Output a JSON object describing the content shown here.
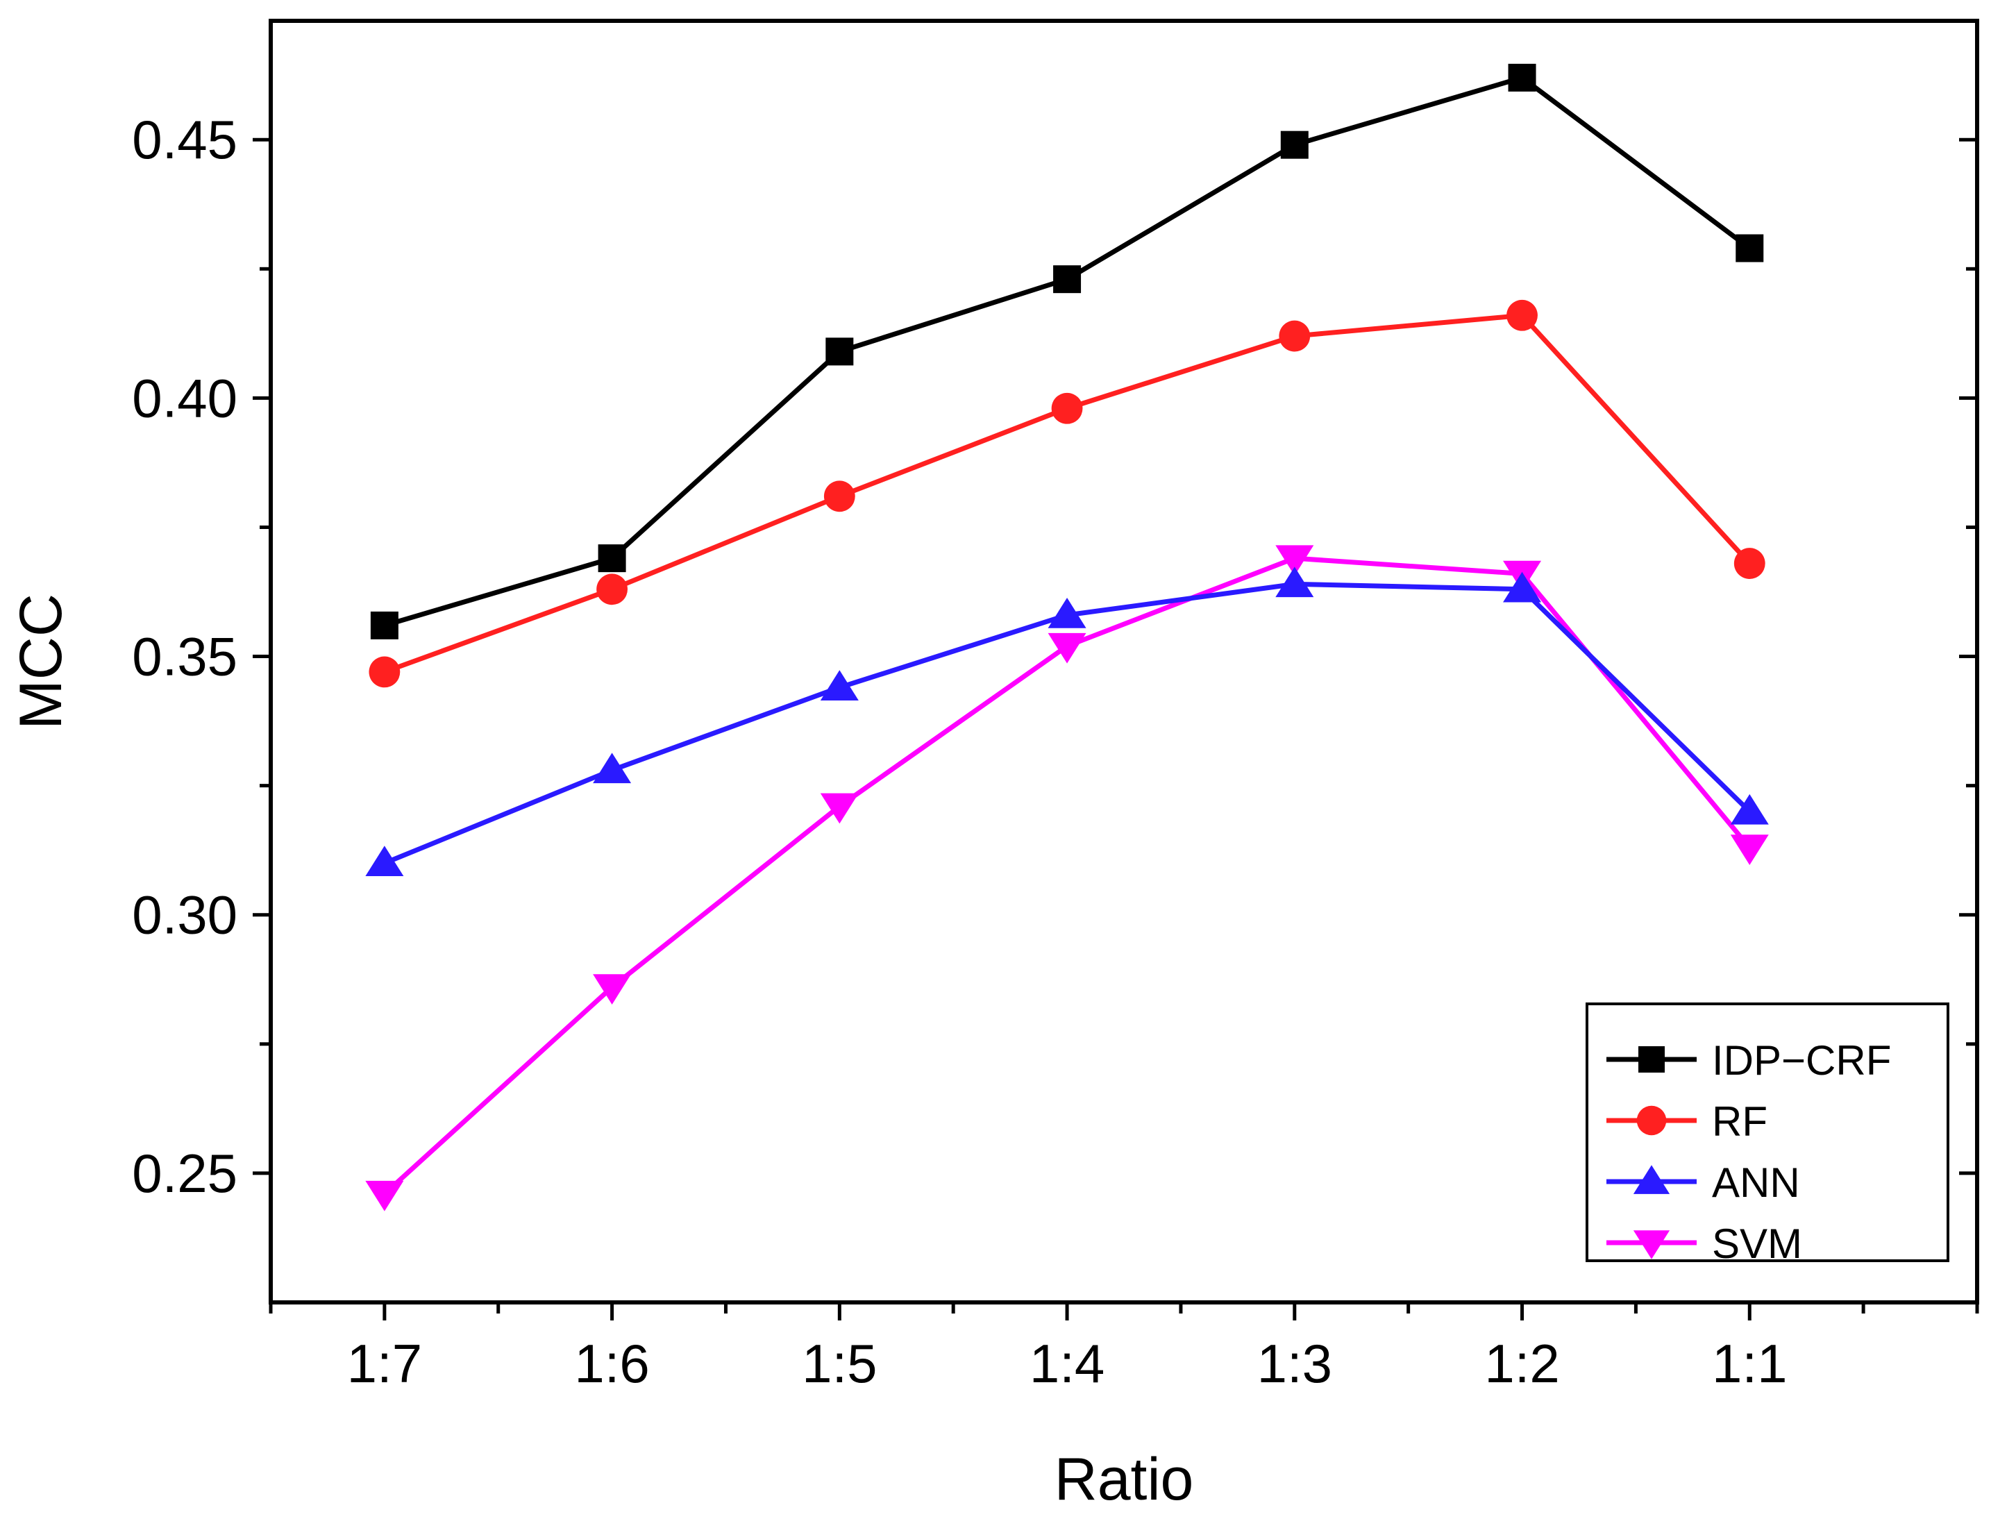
{
  "chart_data": {
    "type": "line",
    "title": "",
    "xlabel": "Ratio",
    "ylabel": "MCC",
    "categories": [
      "1:7",
      "1:6",
      "1:5",
      "1:4",
      "1:3",
      "1:2",
      "1:1"
    ],
    "ylim": [
      0.225,
      0.473
    ],
    "yticks": [
      0.25,
      0.3,
      0.35,
      0.4,
      0.45
    ],
    "ytick_labels": [
      "0.25",
      "0.30",
      "0.35",
      "0.40",
      "0.45"
    ],
    "legend_position": "bottom-right",
    "series": [
      {
        "name": "IDP−CRF",
        "color": "#000000",
        "marker": "square",
        "values": [
          0.356,
          0.369,
          0.409,
          0.423,
          0.449,
          0.462,
          0.429
        ]
      },
      {
        "name": "RF",
        "color": "#ff2020",
        "marker": "circle",
        "values": [
          0.347,
          0.363,
          0.381,
          0.398,
          0.412,
          0.416,
          0.368
        ]
      },
      {
        "name": "ANN",
        "color": "#2a1aff",
        "marker": "triangle-up",
        "values": [
          0.31,
          0.328,
          0.344,
          0.358,
          0.364,
          0.363,
          0.32
        ]
      },
      {
        "name": "SVM",
        "color": "#ff00ff",
        "marker": "triangle-down",
        "values": [
          0.246,
          0.286,
          0.321,
          0.352,
          0.369,
          0.366,
          0.313
        ]
      }
    ]
  }
}
